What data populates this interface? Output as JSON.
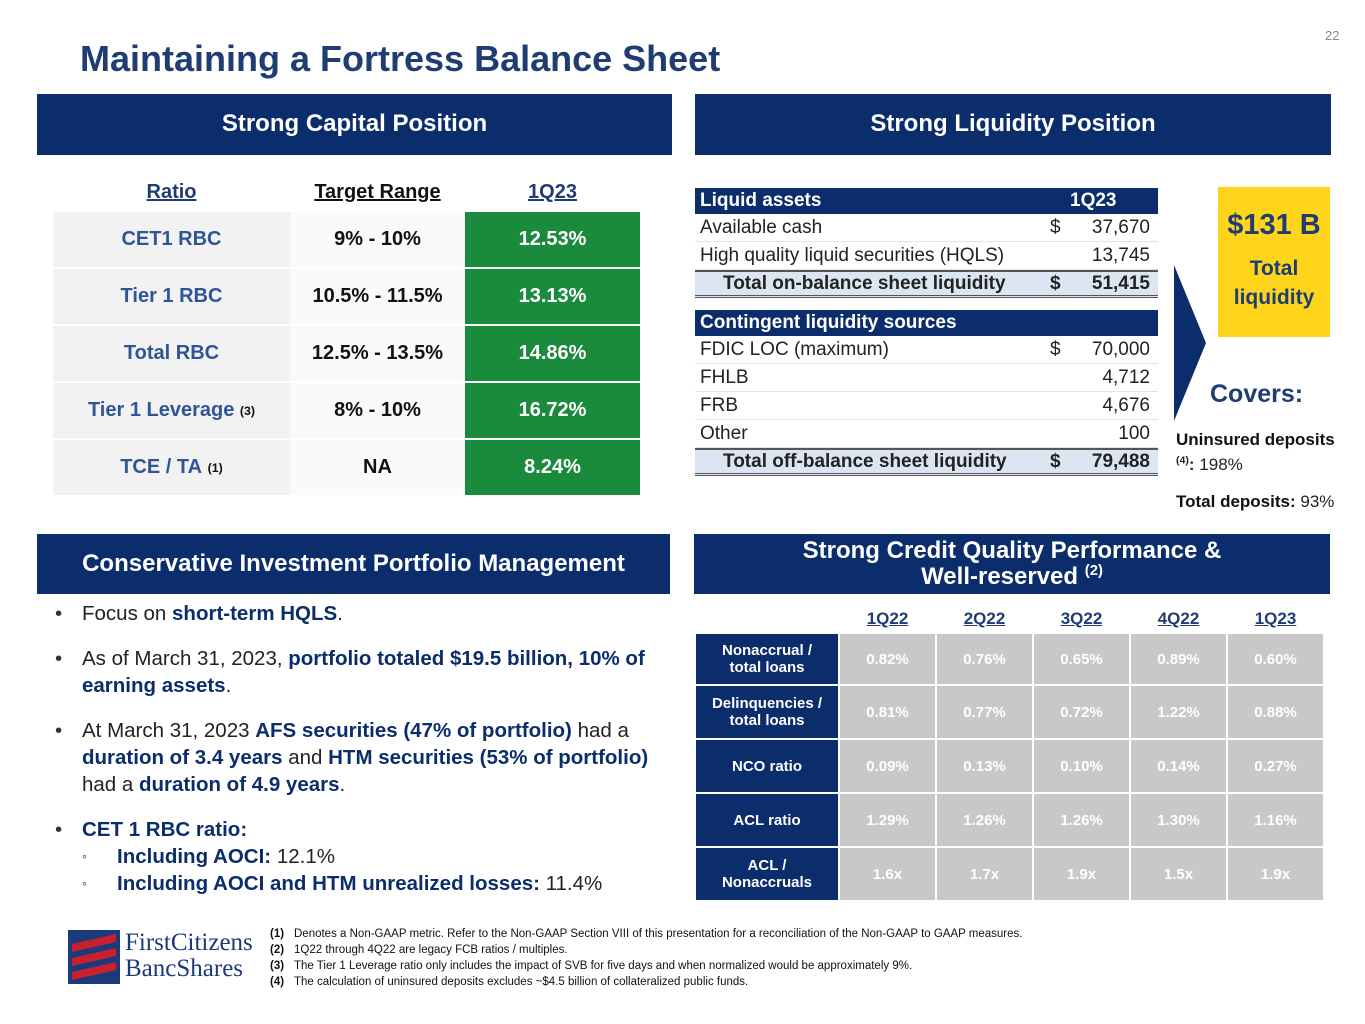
{
  "page_number": "22",
  "title": "Maintaining a Fortress Balance Sheet",
  "capital": {
    "header": "Strong Capital Position",
    "columns": [
      "Ratio",
      "Target Range",
      "1Q23"
    ],
    "rows": [
      {
        "name": "CET1 RBC",
        "target": "9% - 10%",
        "value": "12.53%"
      },
      {
        "name": "Tier 1 RBC",
        "target": "10.5% - 11.5%",
        "value": "13.13%"
      },
      {
        "name": "Total RBC",
        "target": "12.5% - 13.5%",
        "value": "14.86%"
      },
      {
        "name": "Tier 1 Leverage",
        "sup": "(3)",
        "target": "8% - 10%",
        "value": "16.72%"
      },
      {
        "name": "TCE / TA",
        "sup": "(1)",
        "target": "NA",
        "value": "8.24%"
      }
    ]
  },
  "liquidity": {
    "header": "Strong Liquidity Position",
    "on_balance": {
      "label": "Liquid assets",
      "column": "1Q23",
      "rows": [
        {
          "label": "Available cash",
          "currency": "$",
          "value": "37,670"
        },
        {
          "label": "High quality liquid securities (HQLS)",
          "value": "13,745"
        }
      ],
      "total": {
        "label": "Total on-balance sheet liquidity",
        "currency": "$",
        "value": "51,415"
      }
    },
    "off_balance": {
      "label": "Contingent liquidity sources",
      "rows": [
        {
          "label": "FDIC LOC (maximum)",
          "currency": "$",
          "value": "70,000"
        },
        {
          "label": "FHLB",
          "value": "4,712"
        },
        {
          "label": "FRB",
          "value": "4,676"
        },
        {
          "label": "Other",
          "value": "100"
        }
      ],
      "total": {
        "label": "Total off-balance sheet liquidity",
        "currency": "$",
        "value": "79,488"
      }
    },
    "callout": {
      "amount": "$131 B",
      "label": "Total liquidity"
    },
    "covers": {
      "title": "Covers:",
      "items": [
        {
          "label": "Uninsured deposits",
          "sup": "(4)",
          "colon": ":",
          "value": "198%"
        },
        {
          "label": "Total deposits:",
          "value": "93%"
        }
      ]
    }
  },
  "investment": {
    "header": "Conservative Investment Portfolio Management",
    "bullets": [
      {
        "runs": [
          {
            "text": "Focus on "
          },
          {
            "text": "short-term HQLS",
            "bold": true
          },
          {
            "text": "."
          }
        ]
      },
      {
        "runs": [
          {
            "text": "As of March 31, 2023, "
          },
          {
            "text": "portfolio totaled $19.5 billion, 10% of earning assets",
            "bold": true
          },
          {
            "text": "."
          }
        ]
      },
      {
        "runs": [
          {
            "text": "At March 31, 2023 "
          },
          {
            "text": "AFS securities (47% of portfolio)",
            "bold": true
          },
          {
            "text": " had a "
          },
          {
            "text": "duration of 3.4 years",
            "bold": true
          },
          {
            "text": " and "
          },
          {
            "text": "HTM securities (53% of portfolio)",
            "bold": true
          },
          {
            "text": " had a "
          },
          {
            "text": "duration of 4.9 years",
            "bold": true
          },
          {
            "text": "."
          }
        ]
      },
      {
        "runs": [
          {
            "text": "CET 1 RBC ratio:",
            "bold": true
          }
        ],
        "sub": [
          {
            "runs": [
              {
                "text": "Including AOCI:",
                "bold": true
              },
              {
                "text": " 12.1%"
              }
            ]
          },
          {
            "runs": [
              {
                "text": "Including AOCI and HTM unrealized losses:",
                "bold": true
              },
              {
                "text": " 11.4%"
              }
            ]
          }
        ]
      }
    ]
  },
  "credit": {
    "header": "Strong Credit Quality Performance & Well-reserved",
    "sup": "(2)",
    "columns": [
      "1Q22",
      "2Q22",
      "3Q22",
      "4Q22",
      "1Q23"
    ],
    "rows": [
      {
        "label": "Nonaccrual  / total loans",
        "values": [
          "0.82%",
          "0.76%",
          "0.65%",
          "0.89%",
          "0.60%"
        ]
      },
      {
        "label": "Delinquencies / total loans",
        "values": [
          "0.81%",
          "0.77%",
          "0.72%",
          "1.22%",
          "0.88%"
        ]
      },
      {
        "label": "NCO ratio",
        "values": [
          "0.09%",
          "0.13%",
          "0.10%",
          "0.14%",
          "0.27%"
        ]
      },
      {
        "label": "ACL ratio",
        "values": [
          "1.29%",
          "1.26%",
          "1.26%",
          "1.30%",
          "1.16%"
        ]
      },
      {
        "label": "ACL / Nonaccruals",
        "values": [
          "1.6x",
          "1.7x",
          "1.9x",
          "1.5x",
          "1.9x"
        ]
      }
    ]
  },
  "footnotes": [
    {
      "num": "(1)",
      "text": "Denotes a Non-GAAP metric. Refer to the Non-GAAP Section VIII of this presentation for a reconciliation of the Non-GAAP to GAAP measures."
    },
    {
      "num": "(2)",
      "text": "1Q22 through 4Q22 are legacy FCB ratios / multiples."
    },
    {
      "num": "(3)",
      "text": "The Tier 1 Leverage ratio only includes the impact of SVB for five days and when normalized would be approximately 9%."
    },
    {
      "num": "(4)",
      "text": "The calculation of uninsured deposits excludes ~$4.5 billion of collateralized public funds."
    }
  ],
  "logo": {
    "line1": "FirstCitizens",
    "line2": "BancShares"
  }
}
